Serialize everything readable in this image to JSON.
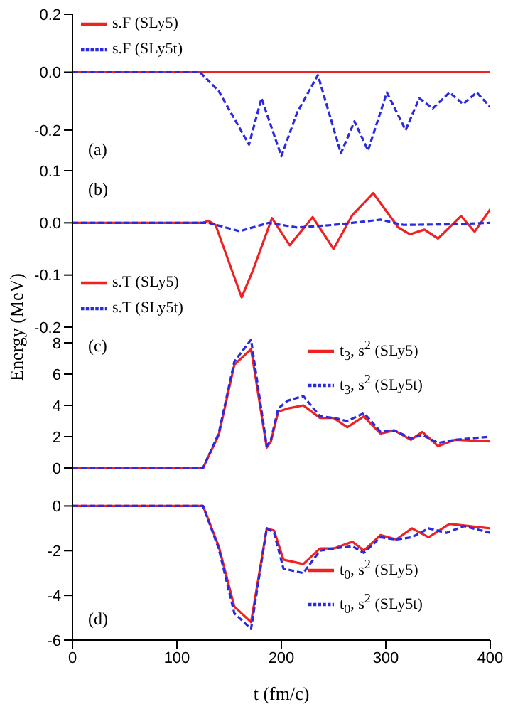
{
  "chart_data": [
    {
      "type": "line",
      "xlim": [
        0,
        400
      ],
      "ylim": [
        -0.34,
        0.2
      ],
      "yticks": [
        {
          "value": -0.2,
          "label": "-0.2"
        },
        {
          "value": 0,
          "label": "0.0"
        },
        {
          "value": 0.2,
          "label": "0.2"
        }
      ],
      "xticks": [
        0,
        100,
        200,
        300,
        400
      ],
      "tick_labels": "y",
      "legend": "top left",
      "annotations": [
        "(a)"
      ],
      "series": [
        {
          "name": "s.F (SLy5)",
          "color": "#ee2222",
          "line_style": "solid",
          "x": [
            0,
            400
          ],
          "values": [
            0,
            0
          ]
        },
        {
          "name": "s.F (SLy5t)",
          "color": "#2a2ae0",
          "line_style": "dashed",
          "x": [
            0,
            122,
            140,
            169,
            181,
            200,
            215,
            235,
            257,
            270,
            283,
            301,
            319,
            332,
            345,
            361,
            374,
            387,
            400
          ],
          "values": [
            0,
            0,
            -0.065,
            -0.25,
            -0.09,
            -0.29,
            -0.14,
            -0.01,
            -0.28,
            -0.17,
            -0.27,
            -0.07,
            -0.2,
            -0.09,
            -0.125,
            -0.07,
            -0.11,
            -0.07,
            -0.12
          ]
        }
      ]
    },
    {
      "type": "line",
      "xlim": [
        0,
        400
      ],
      "ylim": [
        -0.2,
        0.1
      ],
      "yticks": [
        {
          "value": -0.2,
          "label": "-0.2"
        },
        {
          "value": -0.1,
          "label": "-0.1"
        },
        {
          "value": 0,
          "label": "0.0"
        },
        {
          "value": 0.1,
          "label": "0.1"
        }
      ],
      "xticks": [
        0,
        100,
        200,
        300,
        400
      ],
      "tick_labels": "y",
      "legend": "bottom left",
      "ylabel": "Energy (MeV)",
      "annotations": [
        "(b)"
      ],
      "series": [
        {
          "name": "s.T (SLy5)",
          "color": "#ee2222",
          "line_style": "solid",
          "x": [
            0,
            125,
            130,
            137,
            162,
            173,
            191,
            208,
            230,
            250,
            268,
            288,
            312,
            323,
            337,
            350,
            372,
            385,
            400
          ],
          "values": [
            0,
            0,
            0.004,
            -0.004,
            -0.143,
            -0.09,
            0.009,
            -0.043,
            0.011,
            -0.05,
            0.015,
            0.057,
            -0.009,
            -0.022,
            -0.013,
            -0.03,
            0.013,
            -0.017,
            0.026
          ]
        },
        {
          "name": "s.T (SLy5t)",
          "color": "#2a2ae0",
          "line_style": "dashed",
          "x": [
            0,
            130,
            160,
            188,
            215,
            250,
            295,
            317,
            357,
            400
          ],
          "values": [
            0,
            0,
            -0.016,
            0,
            -0.009,
            -0.004,
            0.006,
            -0.004,
            -0.003,
            0
          ]
        }
      ]
    },
    {
      "type": "line",
      "xlim": [
        0,
        400
      ],
      "ylim": [
        -1,
        9
      ],
      "yticks": [
        0,
        2,
        4,
        6,
        8
      ],
      "xticks": [
        0,
        100,
        200,
        300,
        400
      ],
      "tick_labels": "y",
      "legend": "top right",
      "annotations": [
        "(c)"
      ],
      "series": [
        {
          "name": "t$_{3}$, s$^{2}$ (SLy5)",
          "color": "#ee2222",
          "line_style": "solid",
          "x": [
            0,
            125,
            140,
            155,
            171,
            186,
            190,
            197,
            206,
            221,
            237,
            250,
            263,
            279,
            286,
            295,
            308,
            324,
            335,
            350,
            366,
            400
          ],
          "values": [
            0,
            0,
            2.1,
            6.6,
            7.6,
            1.3,
            1.7,
            3.6,
            3.8,
            4.0,
            3.2,
            3.2,
            2.6,
            3.3,
            2.8,
            2.2,
            2.4,
            1.8,
            2.3,
            1.4,
            1.8,
            1.7
          ]
        },
        {
          "name": "t$_{3}$, s$^{2}$ (SLy5t)",
          "color": "#2a2ae0",
          "line_style": "dashed",
          "x": [
            0,
            125,
            140,
            155,
            171,
            186,
            190,
            197,
            206,
            221,
            237,
            250,
            263,
            279,
            286,
            295,
            308,
            324,
            335,
            350,
            366,
            400
          ],
          "values": [
            0,
            0,
            2.2,
            6.8,
            8.2,
            1.4,
            1.8,
            3.8,
            4.3,
            4.6,
            3.3,
            3.2,
            3.0,
            3.5,
            3.0,
            2.3,
            2.4,
            1.9,
            2.1,
            1.6,
            1.8,
            2.0
          ]
        }
      ]
    },
    {
      "type": "line",
      "xlim": [
        0,
        400
      ],
      "ylim": [
        -6,
        1
      ],
      "yticks": [
        -6,
        -4,
        -2,
        0
      ],
      "xticks": [
        0,
        100,
        200,
        300,
        400
      ],
      "legend": "bottom right",
      "xlabel": "t (fm/c)",
      "annotations": [
        "(d)"
      ],
      "series": [
        {
          "name": "t$_{0}$, s$^{2}$ (SLy5)",
          "color": "#ee2222",
          "line_style": "solid",
          "x": [
            0,
            125,
            140,
            155,
            171,
            186,
            193,
            202,
            221,
            237,
            250,
            268,
            279,
            295,
            310,
            325,
            341,
            361,
            400
          ],
          "values": [
            0,
            0,
            -1.8,
            -4.5,
            -5.2,
            -1.0,
            -1.1,
            -2.4,
            -2.6,
            -1.9,
            -1.9,
            -1.6,
            -2.0,
            -1.3,
            -1.5,
            -1.0,
            -1.4,
            -0.8,
            -1.0
          ]
        },
        {
          "name": "t$_{0}$, s$^{2}$ (SLy5t)",
          "color": "#2a2ae0",
          "line_style": "dashed",
          "x": [
            0,
            125,
            140,
            155,
            171,
            186,
            193,
            202,
            221,
            237,
            250,
            268,
            279,
            295,
            310,
            325,
            341,
            358,
            375,
            400
          ],
          "values": [
            0,
            0,
            -1.9,
            -4.8,
            -5.5,
            -1.0,
            -1.2,
            -2.8,
            -3.0,
            -2.0,
            -1.9,
            -1.8,
            -2.1,
            -1.4,
            -1.5,
            -1.4,
            -1.0,
            -1.2,
            -0.9,
            -1.2
          ]
        }
      ]
    }
  ]
}
